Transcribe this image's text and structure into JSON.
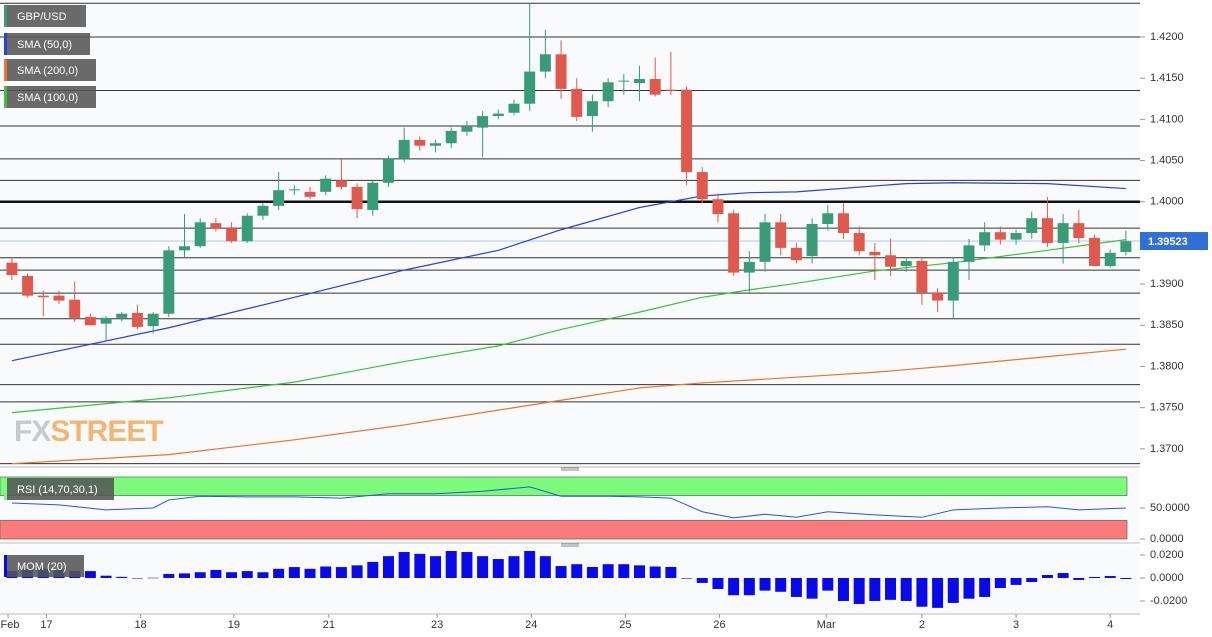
{
  "chart_data": [
    {
      "type": "candlestick",
      "symbol": "GBP/USD",
      "up_color": "#3a9b79",
      "down_color": "#df5a4e",
      "xlim": [
        -0.76,
        71.9
      ],
      "ylim": [
        1.36804,
        1.42449
      ],
      "yticks": [
        {
          "value": 1.42,
          "label": "1.4200"
        },
        {
          "value": 1.415,
          "label": "1.4150"
        },
        {
          "value": 1.41,
          "label": "1.4100"
        },
        {
          "value": 1.405,
          "label": "1.4050"
        },
        {
          "value": 1.4,
          "label": "1.4000"
        },
        {
          "value": 1.395,
          "label": "1.3950"
        },
        {
          "value": 1.39,
          "label": "1.3900"
        },
        {
          "value": 1.385,
          "label": "1.3850"
        },
        {
          "value": 1.38,
          "label": "1.3800"
        },
        {
          "value": 1.375,
          "label": "1.3750"
        },
        {
          "value": 1.37,
          "label": "1.3700"
        }
      ],
      "xticks": [
        {
          "value": -0.25,
          "label": "Feb"
        },
        {
          "value": 2.2,
          "label": "17"
        },
        {
          "value": 8.2,
          "label": "18"
        },
        {
          "value": 14.15,
          "label": "19"
        },
        {
          "value": 20.2,
          "label": "21"
        },
        {
          "value": 27.1,
          "label": "23"
        },
        {
          "value": 33.1,
          "label": "24"
        },
        {
          "value": 39.1,
          "label": "25"
        },
        {
          "value": 45.1,
          "label": "26"
        },
        {
          "value": 51.9,
          "label": "Mar"
        },
        {
          "value": 58,
          "label": "2"
        },
        {
          "value": 64,
          "label": "3"
        },
        {
          "value": 70,
          "label": "4"
        }
      ],
      "levels": [
        1.4241,
        1.42,
        1.4135,
        1.4092,
        1.4052,
        1.4026,
        1.3968,
        1.3932,
        1.3917,
        1.3889,
        1.3858,
        1.3827,
        1.3778,
        1.3757,
        1.3682
      ],
      "key_level": 1.4,
      "last_price": 1.39523,
      "last_price_color": "#2f6fd6",
      "watermark": [
        "FX",
        "STREET"
      ],
      "x": [
        0,
        1,
        2,
        3,
        4,
        5,
        6,
        7,
        8,
        9,
        10,
        11,
        12,
        13,
        14,
        15,
        16,
        17,
        18,
        19,
        20,
        21,
        22,
        23,
        24,
        25,
        26,
        27,
        28,
        29,
        30,
        31,
        32,
        33,
        34,
        35,
        36,
        37,
        38,
        39,
        40,
        41,
        42,
        43,
        44,
        45,
        46,
        47,
        48,
        49,
        50,
        51,
        52,
        53,
        54,
        55,
        56,
        57,
        58,
        59,
        60,
        61,
        62,
        63,
        64,
        65,
        66,
        67,
        68,
        69,
        70,
        71
      ],
      "open": [
        1.3926,
        1.391,
        1.3886,
        1.3886,
        1.3881,
        1.386,
        1.3852,
        1.3859,
        1.3865,
        1.3849,
        1.3864,
        1.3941,
        1.3946,
        1.3974,
        1.3968,
        1.3952,
        1.3983,
        1.3995,
        1.4014,
        1.4012,
        1.4012,
        1.4026,
        1.4018,
        1.399,
        1.4023,
        1.4052,
        1.4075,
        1.4068,
        1.4071,
        1.4085,
        1.409,
        1.4104,
        1.4108,
        1.4119,
        1.4158,
        1.4179,
        1.4137,
        1.4104,
        1.4122,
        1.4146,
        1.4144,
        1.4149,
        1.4136,
        1.4136,
        1.4036,
        1.4003,
        1.3986,
        1.3914,
        1.3927,
        1.3975,
        1.3944,
        1.3934,
        1.3973,
        1.3986,
        1.3962,
        1.3939,
        1.3935,
        1.3922,
        1.3928,
        1.389,
        1.388,
        1.3927,
        1.3947,
        1.3963,
        1.3954,
        1.3962,
        1.398,
        1.395,
        1.3974,
        1.3956,
        1.3922,
        1.3939
      ],
      "high": [
        1.3932,
        1.3913,
        1.3892,
        1.3892,
        1.3903,
        1.3864,
        1.3861,
        1.3866,
        1.3875,
        1.3866,
        1.3946,
        1.3985,
        1.398,
        1.398,
        1.3975,
        1.3986,
        1.3998,
        1.4036,
        1.402,
        1.4018,
        1.4032,
        1.4053,
        1.4022,
        1.4026,
        1.4056,
        1.409,
        1.4079,
        1.4075,
        1.409,
        1.4098,
        1.411,
        1.4112,
        1.4124,
        1.4241,
        1.4209,
        1.4196,
        1.415,
        1.413,
        1.415,
        1.4155,
        1.4165,
        1.4175,
        1.4182,
        1.414,
        1.4042,
        1.401,
        1.399,
        1.394,
        1.3985,
        1.3985,
        1.395,
        1.398,
        1.3996,
        1.3998,
        1.397,
        1.395,
        1.3955,
        1.3932,
        1.3932,
        1.3895,
        1.3932,
        1.3955,
        1.3975,
        1.397,
        1.3966,
        1.3988,
        1.4006,
        1.3985,
        1.399,
        1.396,
        1.3942,
        1.3965
      ],
      "low": [
        1.3905,
        1.3884,
        1.3861,
        1.3876,
        1.3854,
        1.385,
        1.3832,
        1.3855,
        1.3845,
        1.384,
        1.386,
        1.3932,
        1.3944,
        1.3964,
        1.395,
        1.395,
        1.3978,
        1.399,
        1.4008,
        1.4003,
        1.4008,
        1.4015,
        1.398,
        1.3983,
        1.4018,
        1.4048,
        1.4062,
        1.406,
        1.4065,
        1.408,
        1.4054,
        1.41,
        1.4105,
        1.411,
        1.415,
        1.4125,
        1.4098,
        1.4085,
        1.4115,
        1.413,
        1.4122,
        1.4128,
        1.413,
        1.402,
        1.3998,
        1.3975,
        1.391,
        1.389,
        1.3915,
        1.3935,
        1.3925,
        1.3925,
        1.3965,
        1.3955,
        1.3935,
        1.3905,
        1.391,
        1.3915,
        1.3875,
        1.3866,
        1.3859,
        1.3905,
        1.394,
        1.3948,
        1.3948,
        1.3955,
        1.3945,
        1.3925,
        1.395,
        1.3922,
        1.392,
        1.3935
      ],
      "close": [
        1.3911,
        1.3886,
        1.3884,
        1.388,
        1.3859,
        1.385,
        1.3859,
        1.3864,
        1.3848,
        1.3864,
        1.3941,
        1.3946,
        1.3975,
        1.3967,
        1.3952,
        1.3983,
        1.3995,
        1.4014,
        1.4015,
        1.4006,
        1.4028,
        1.4018,
        1.3991,
        1.4023,
        1.4052,
        1.4075,
        1.4068,
        1.4071,
        1.4086,
        1.4091,
        1.4104,
        1.4107,
        1.4119,
        1.4158,
        1.4179,
        1.4137,
        1.4103,
        1.4122,
        1.4145,
        1.4147,
        1.4149,
        1.413,
        1.4135,
        1.4036,
        1.4003,
        1.3985,
        1.3914,
        1.3927,
        1.3975,
        1.3944,
        1.3929,
        1.3973,
        1.3986,
        1.3962,
        1.394,
        1.3935,
        1.3921,
        1.3928,
        1.389,
        1.388,
        1.3927,
        1.3947,
        1.3963,
        1.3954,
        1.3962,
        1.398,
        1.395,
        1.3974,
        1.3956,
        1.3922,
        1.3938,
        1.3952
      ],
      "series": [
        {
          "name": "SMA (50,0)",
          "color": "#2443d8",
          "x": [
            0,
            10,
            18,
            25,
            31,
            35,
            40,
            44,
            47,
            50,
            57,
            60,
            66,
            71
          ],
          "values": [
            1.3807,
            1.3847,
            1.3884,
            1.3917,
            1.3941,
            1.3966,
            1.3993,
            1.4007,
            1.4011,
            1.4012,
            1.4022,
            1.4023,
            1.4022,
            1.4016
          ]
        },
        {
          "name": "SMA (200,0)",
          "color": "#e8772d",
          "x": [
            0,
            10,
            18,
            25,
            31,
            35,
            40,
            44,
            50,
            55,
            60,
            66,
            71
          ],
          "values": [
            1.3682,
            1.3693,
            1.3711,
            1.3729,
            1.3747,
            1.3759,
            1.3774,
            1.378,
            1.3787,
            1.3793,
            1.3801,
            1.3812,
            1.3821
          ]
        },
        {
          "name": "SMA (100,0)",
          "color": "#3cc23c",
          "x": [
            0,
            10,
            18,
            25,
            31,
            35,
            40,
            44,
            47,
            50,
            55,
            60,
            66,
            71
          ],
          "values": [
            1.3744,
            1.3762,
            1.3781,
            1.3806,
            1.3825,
            1.3845,
            1.3866,
            1.3884,
            1.3893,
            1.3901,
            1.3916,
            1.3926,
            1.3941,
            1.3954
          ]
        }
      ]
    },
    {
      "type": "line",
      "title": "RSI (14,70,30,1)",
      "color": "#2a55d8",
      "xlim": [
        -0.76,
        71.9
      ],
      "ylim": [
        -3.2,
        104.8
      ],
      "yticks": [
        {
          "value": 50,
          "label": "50.0000"
        },
        {
          "value": 0,
          "label": "0.0000"
        }
      ],
      "bands": [
        {
          "from": 70,
          "to": 100,
          "color": "#7cfa7c"
        },
        {
          "from": 0,
          "to": 30,
          "color": "#fa7b7b"
        }
      ],
      "x": [
        0,
        3,
        6,
        9,
        10,
        12,
        15,
        18,
        21,
        24,
        27,
        30,
        33,
        35,
        38,
        40,
        42,
        44,
        46,
        48,
        50,
        52,
        55,
        58,
        60,
        63,
        66,
        68,
        71
      ],
      "values": [
        58,
        55,
        47,
        50,
        63,
        69,
        68,
        68,
        66,
        73,
        73,
        77,
        84,
        69,
        69,
        68,
        66,
        44,
        34,
        40,
        35,
        44,
        39,
        35,
        47,
        50,
        52,
        47,
        50
      ]
    },
    {
      "type": "bar",
      "title": "MOM (20)",
      "color": "#0a0ae6",
      "xlim": [
        -0.76,
        71.9
      ],
      "ylim": [
        -0.0296,
        0.0261
      ],
      "yticks": [
        {
          "value": 0.02,
          "label": "0.0200"
        },
        {
          "value": 0,
          "label": "0.0000"
        },
        {
          "value": -0.02,
          "label": "-0.0200"
        }
      ],
      "x": [
        0,
        1,
        2,
        3,
        4,
        5,
        6,
        7,
        8,
        9,
        10,
        11,
        12,
        13,
        14,
        15,
        16,
        17,
        18,
        19,
        20,
        21,
        22,
        23,
        24,
        25,
        26,
        27,
        28,
        29,
        30,
        31,
        32,
        33,
        34,
        35,
        36,
        37,
        38,
        39,
        40,
        41,
        42,
        43,
        44,
        45,
        46,
        47,
        48,
        49,
        50,
        51,
        52,
        53,
        54,
        55,
        56,
        57,
        58,
        59,
        60,
        61,
        62,
        63,
        64,
        65,
        66,
        67,
        68,
        69,
        70,
        71
      ],
      "values": [
        0.006,
        0.008,
        0.008,
        0.007,
        0.006,
        0.006,
        0.002,
        0.001,
        0,
        0.0002,
        0.0035,
        0.004,
        0.005,
        0.007,
        0.005,
        0.006,
        0.005,
        0.008,
        0.0095,
        0.008,
        0.01,
        0.0095,
        0.011,
        0.014,
        0.019,
        0.0226,
        0.021,
        0.019,
        0.0235,
        0.0226,
        0.019,
        0.0165,
        0.019,
        0.0235,
        0.019,
        0.0104,
        0.012,
        0.0096,
        0.012,
        0.012,
        0.011,
        0.01,
        0.0096,
        -0.0005,
        -0.0043,
        -0.0096,
        -0.015,
        -0.015,
        -0.011,
        -0.012,
        -0.0165,
        -0.018,
        -0.011,
        -0.02,
        -0.0226,
        -0.02,
        -0.019,
        -0.02,
        -0.025,
        -0.026,
        -0.0217,
        -0.018,
        -0.0165,
        -0.0087,
        -0.006,
        -0.0035,
        0.0026,
        0.0043,
        -0.0017,
        0.0009,
        0.0017,
        -0.0009
      ]
    }
  ]
}
